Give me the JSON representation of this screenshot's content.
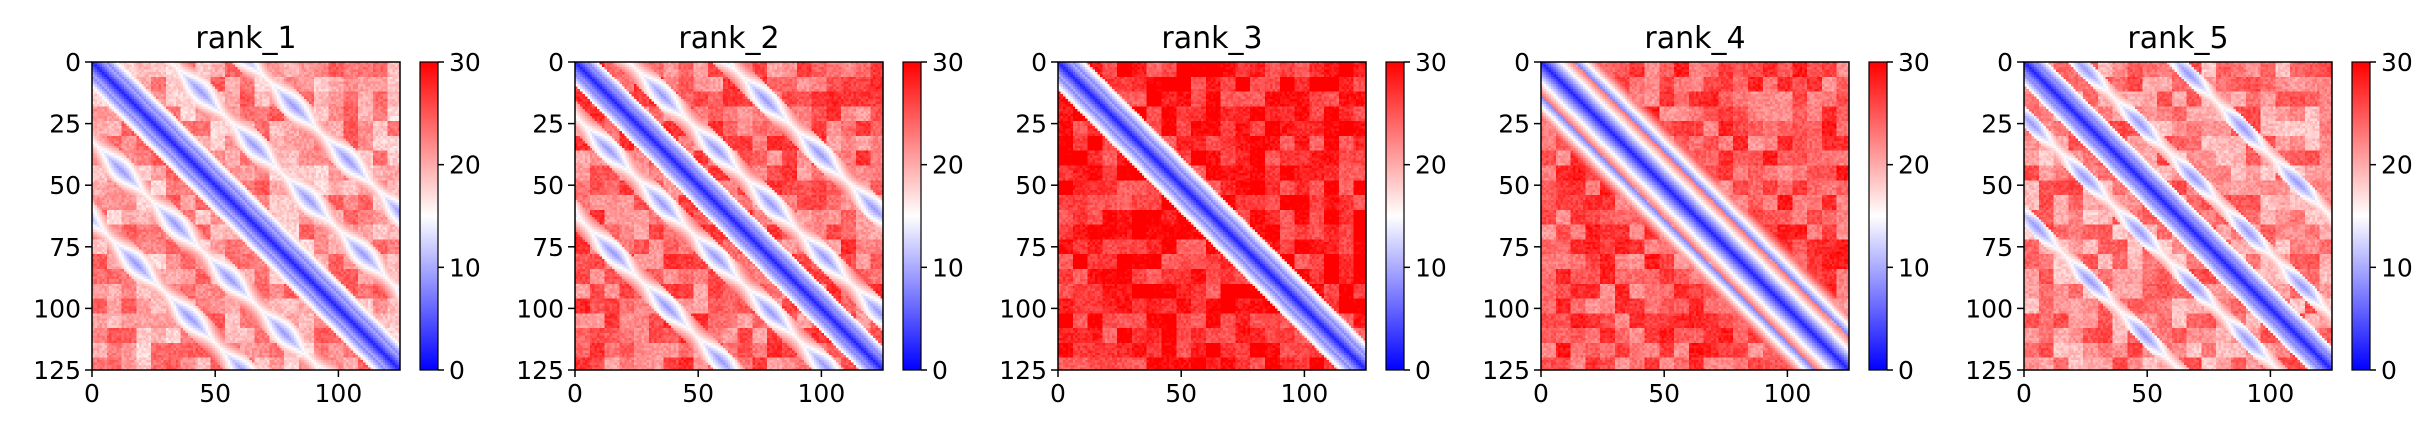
{
  "chart_data": [
    {
      "type": "heatmap",
      "title": "rank_1",
      "x": {
        "ticks": [
          0,
          50,
          100
        ],
        "tick_labels": [
          "0",
          "50",
          "100"
        ],
        "range": [
          0,
          125
        ]
      },
      "y": {
        "ticks": [
          0,
          25,
          50,
          75,
          100,
          125
        ],
        "tick_labels": [
          "0",
          "25",
          "50",
          "75",
          "100",
          "125"
        ],
        "range": [
          0,
          125
        ],
        "inverted": true
      },
      "colorbar": {
        "ticks": [
          0,
          10,
          20,
          30
        ],
        "tick_labels": [
          "0",
          "10",
          "20",
          "30"
        ],
        "range": [
          0,
          30
        ],
        "colormap": "bwr"
      },
      "pattern": {
        "diag_width": 6,
        "off_diag_blue_bands": [
          -64,
          -32,
          32,
          64
        ],
        "off_diag_band_width": 8,
        "background": 21
      }
    },
    {
      "type": "heatmap",
      "title": "rank_2",
      "x": {
        "ticks": [
          0,
          50,
          100
        ],
        "tick_labels": [
          "0",
          "50",
          "100"
        ],
        "range": [
          0,
          125
        ]
      },
      "y": {
        "ticks": [
          0,
          25,
          50,
          75,
          100,
          125
        ],
        "tick_labels": [
          "0",
          "25",
          "50",
          "75",
          "100",
          "125"
        ],
        "range": [
          0,
          125
        ],
        "inverted": true
      },
      "colorbar": {
        "ticks": [
          0,
          10,
          20,
          30
        ],
        "tick_labels": [
          "0",
          "10",
          "20",
          "30"
        ],
        "range": [
          0,
          30
        ],
        "colormap": "bwr"
      },
      "pattern": {
        "diag_width": 5,
        "off_diag_blue_bands": [
          -22,
          22,
          -62,
          62
        ],
        "off_diag_band_width": 7,
        "background": 24
      }
    },
    {
      "type": "heatmap",
      "title": "rank_3",
      "x": {
        "ticks": [
          0,
          50,
          100
        ],
        "tick_labels": [
          "0",
          "50",
          "100"
        ],
        "range": [
          0,
          125
        ]
      },
      "y": {
        "ticks": [
          0,
          25,
          50,
          75,
          100,
          125
        ],
        "tick_labels": [
          "0",
          "25",
          "50",
          "75",
          "100",
          "125"
        ],
        "range": [
          0,
          125
        ],
        "inverted": true
      },
      "colorbar": {
        "ticks": [
          0,
          10,
          20,
          30
        ],
        "tick_labels": [
          "0",
          "10",
          "20",
          "30"
        ],
        "range": [
          0,
          30
        ],
        "colormap": "bwr"
      },
      "pattern": {
        "diag_width": 6,
        "off_diag_blue_bands": [],
        "off_diag_band_width": 0,
        "background": 28
      }
    },
    {
      "type": "heatmap",
      "title": "rank_4",
      "x": {
        "ticks": [
          0,
          50,
          100
        ],
        "tick_labels": [
          "0",
          "50",
          "100"
        ],
        "range": [
          0,
          125
        ]
      },
      "y": {
        "ticks": [
          0,
          25,
          50,
          75,
          100,
          125
        ],
        "tick_labels": [
          "0",
          "25",
          "50",
          "75",
          "100",
          "125"
        ],
        "range": [
          0,
          125
        ],
        "inverted": true
      },
      "colorbar": {
        "ticks": [
          0,
          10,
          20,
          30
        ],
        "tick_labels": [
          "0",
          "10",
          "20",
          "30"
        ],
        "range": [
          0,
          30
        ],
        "colormap": "bwr"
      },
      "pattern": {
        "diag_width": 14,
        "off_diag_blue_bands": [],
        "off_diag_band_width": 0,
        "background": 25
      }
    },
    {
      "type": "heatmap",
      "title": "rank_5",
      "x": {
        "ticks": [
          0,
          50,
          100
        ],
        "tick_labels": [
          "0",
          "50",
          "100"
        ],
        "range": [
          0,
          125
        ]
      },
      "y": {
        "ticks": [
          0,
          25,
          50,
          75,
          100,
          125
        ],
        "tick_labels": [
          "0",
          "25",
          "50",
          "75",
          "100",
          "125"
        ],
        "range": [
          0,
          125
        ],
        "inverted": true
      },
      "colorbar": {
        "ticks": [
          0,
          10,
          20,
          30
        ],
        "tick_labels": [
          "0",
          "10",
          "20",
          "30"
        ],
        "range": [
          0,
          30
        ],
        "colormap": "bwr"
      },
      "pattern": {
        "diag_width": 5,
        "off_diag_blue_bands": [
          -22,
          22,
          -62,
          62
        ],
        "off_diag_band_width": 5,
        "background": 22
      }
    }
  ]
}
